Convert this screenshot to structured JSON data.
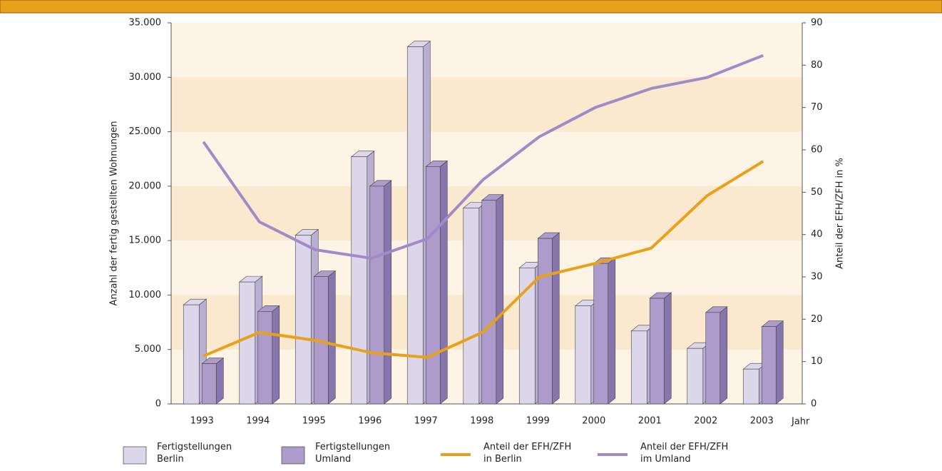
{
  "chart_data": {
    "type": "bar",
    "categories": [
      "1993",
      "1994",
      "1995",
      "1996",
      "1997",
      "1998",
      "1999",
      "2000",
      "2001",
      "2002",
      "2003"
    ],
    "x_label": "Jahr",
    "y_label": "Anzahl der fertig gestellten Wohnungen",
    "y2_label": "Anteil der EFH/ZFH in %",
    "series": [
      {
        "name": "Fertigstellungen\nBerlin",
        "type": "bar",
        "color": "#dcd6ea",
        "side_color": "#b8afd2",
        "values": [
          9100,
          11200,
          15500,
          22700,
          32800,
          18000,
          12500,
          9000,
          6700,
          5100,
          3200
        ]
      },
      {
        "name": "Fertigstellungen\nUmland",
        "type": "bar",
        "color": "#ad9ccb",
        "side_color": "#8775ad",
        "values": [
          3700,
          8500,
          11700,
          20000,
          21800,
          18700,
          15200,
          12900,
          9700,
          8400,
          7100
        ]
      },
      {
        "name": "Anteil der EFH/ZFH\nin Berlin",
        "type": "line",
        "axis": "y2",
        "color": "#e8a11a",
        "values": [
          11.3,
          16.9,
          15.0,
          12.1,
          11.0,
          17.0,
          30.0,
          33.2,
          36.8,
          49.2,
          57.3
        ]
      },
      {
        "name": "Anteil der EFH/ZFH\nim Umland",
        "type": "line",
        "axis": "y2",
        "color": "#a08bc8",
        "values": [
          61.9,
          43.0,
          36.4,
          34.4,
          39.0,
          53.0,
          63.1,
          70.0,
          74.5,
          77.1,
          82.3
        ]
      }
    ],
    "ylim": [
      0,
      35000
    ],
    "yticks": [
      0,
      {
        "value": 5000,
        "label": "5.000"
      },
      {
        "value": 10000,
        "label": "10.000"
      },
      {
        "value": 15000,
        "label": "15.000"
      },
      {
        "value": 20000,
        "label": "20.000"
      },
      {
        "value": 25000,
        "label": "25.000"
      },
      {
        "value": 30000,
        "label": "30.000"
      },
      {
        "value": 35000,
        "label": "35.000"
      }
    ],
    "y2lim": [
      0,
      90
    ],
    "y2ticks": [
      0,
      10,
      20,
      30,
      40,
      50,
      60,
      70,
      80,
      90
    ]
  }
}
